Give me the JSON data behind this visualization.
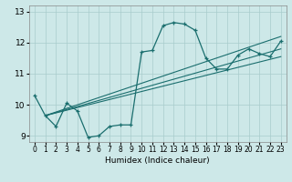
{
  "xlabel": "Humidex (Indice chaleur)",
  "background_color": "#cde8e8",
  "grid_color": "#a8cccc",
  "line_color": "#1a6e6e",
  "xlim": [
    -0.5,
    23.5
  ],
  "ylim": [
    8.8,
    13.2
  ],
  "xticks": [
    0,
    1,
    2,
    3,
    4,
    5,
    6,
    7,
    8,
    9,
    10,
    11,
    12,
    13,
    14,
    15,
    16,
    17,
    18,
    19,
    20,
    21,
    22,
    23
  ],
  "yticks": [
    9,
    10,
    11,
    12,
    13
  ],
  "main_x": [
    0,
    1,
    2,
    3,
    4,
    5,
    6,
    7,
    8,
    9,
    10,
    11,
    12,
    13,
    14,
    15,
    16,
    17,
    18,
    19,
    20,
    21,
    22,
    23
  ],
  "main_y": [
    10.3,
    9.65,
    9.3,
    10.05,
    9.8,
    8.95,
    9.0,
    9.3,
    9.35,
    9.35,
    11.7,
    11.75,
    12.55,
    12.65,
    12.6,
    12.4,
    11.5,
    11.15,
    11.15,
    11.6,
    11.8,
    11.65,
    11.55,
    12.05
  ],
  "trend1_x": [
    1,
    23
  ],
  "trend1_y": [
    9.65,
    11.55
  ],
  "trend2_x": [
    1,
    23
  ],
  "trend2_y": [
    9.65,
    11.8
  ],
  "trend3_x": [
    1,
    23
  ],
  "trend3_y": [
    9.65,
    12.2
  ]
}
